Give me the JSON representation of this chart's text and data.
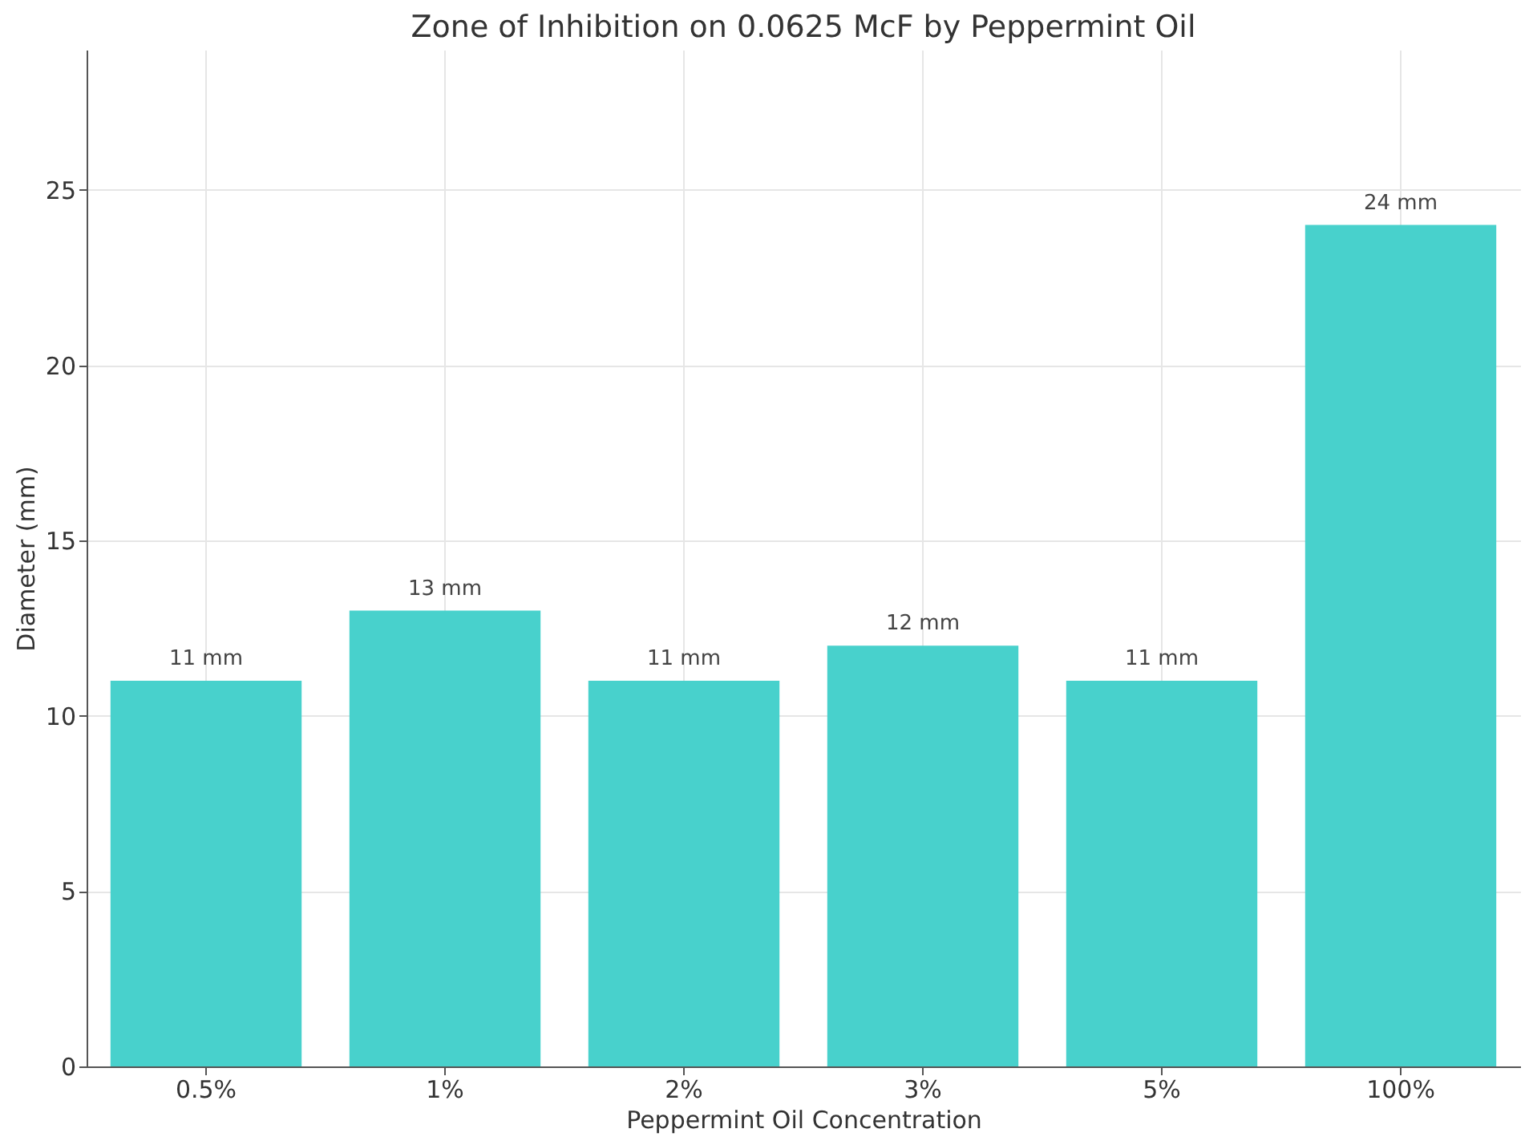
{
  "chart_data": {
    "type": "bar",
    "title": "Zone of Inhibition on 0.0625 McF by Peppermint Oil",
    "xlabel": "Peppermint Oil Concentration",
    "ylabel": "Diameter (mm)",
    "categories": [
      "0.5%",
      "1%",
      "2%",
      "3%",
      "5%",
      "100%"
    ],
    "values": [
      11,
      13,
      11,
      12,
      11,
      24
    ],
    "value_labels": [
      "11 mm",
      "13 mm",
      "11 mm",
      "12 mm",
      "11 mm",
      "24 mm"
    ],
    "color": "#48d1cc",
    "ylim": [
      0,
      29
    ],
    "yticks": [
      0,
      5,
      10,
      15,
      20,
      25
    ],
    "grid": true
  }
}
